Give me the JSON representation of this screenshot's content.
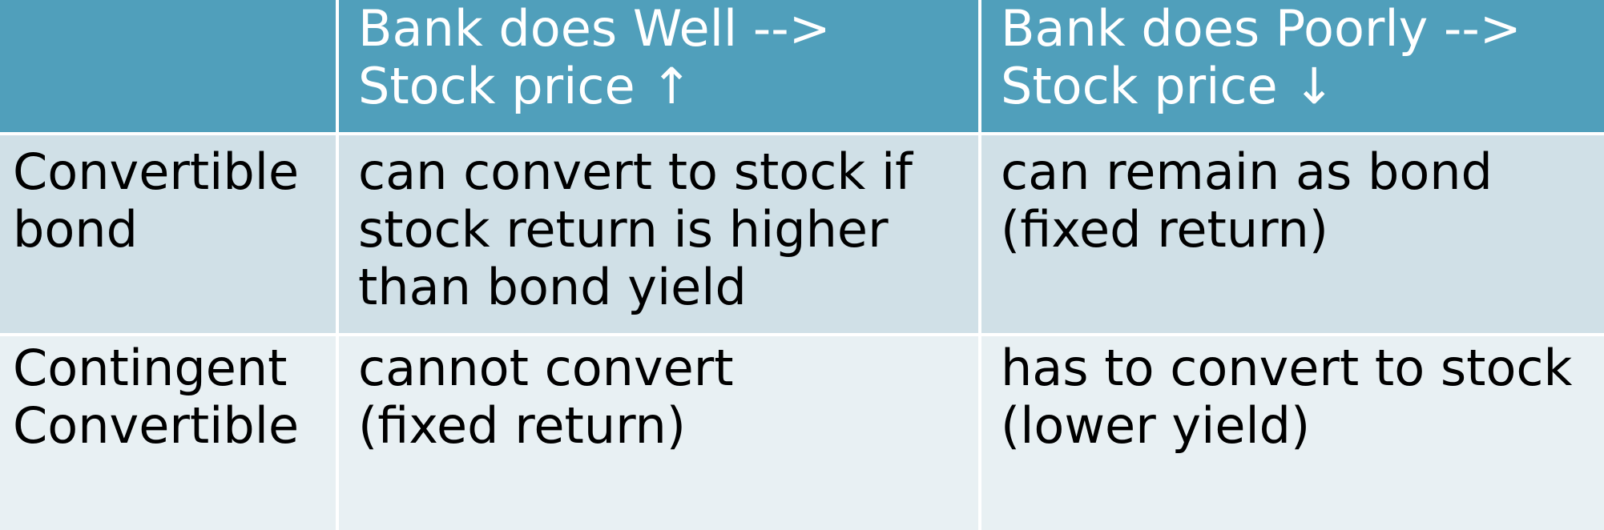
{
  "table": {
    "header": {
      "corner": "",
      "col1_line1": "Bank does Well -->",
      "col1_line2": "Stock price ↑",
      "col2_line1": "Bank does Poorly -->",
      "col2_line2": "Stock price ↓"
    },
    "rows": [
      {
        "label_line1": "Convertible",
        "label_line2": "bond",
        "well_line1": "can convert to stock if",
        "well_line2": "stock return is higher",
        "well_line3": "than bond yield",
        "poorly_line1": "can remain as bond",
        "poorly_line2": "(fixed return)"
      },
      {
        "label_line1": "Contingent",
        "label_line2": "Convertible",
        "well_line1": "cannot convert",
        "well_line2": "(fixed return)",
        "poorly_line1": "has to convert to stock",
        "poorly_line2": "(lower yield)"
      }
    ],
    "colors": {
      "header_bg": "#509fbb",
      "row1_bg": "#d0e0e7",
      "row2_bg": "#e8f0f3"
    }
  }
}
